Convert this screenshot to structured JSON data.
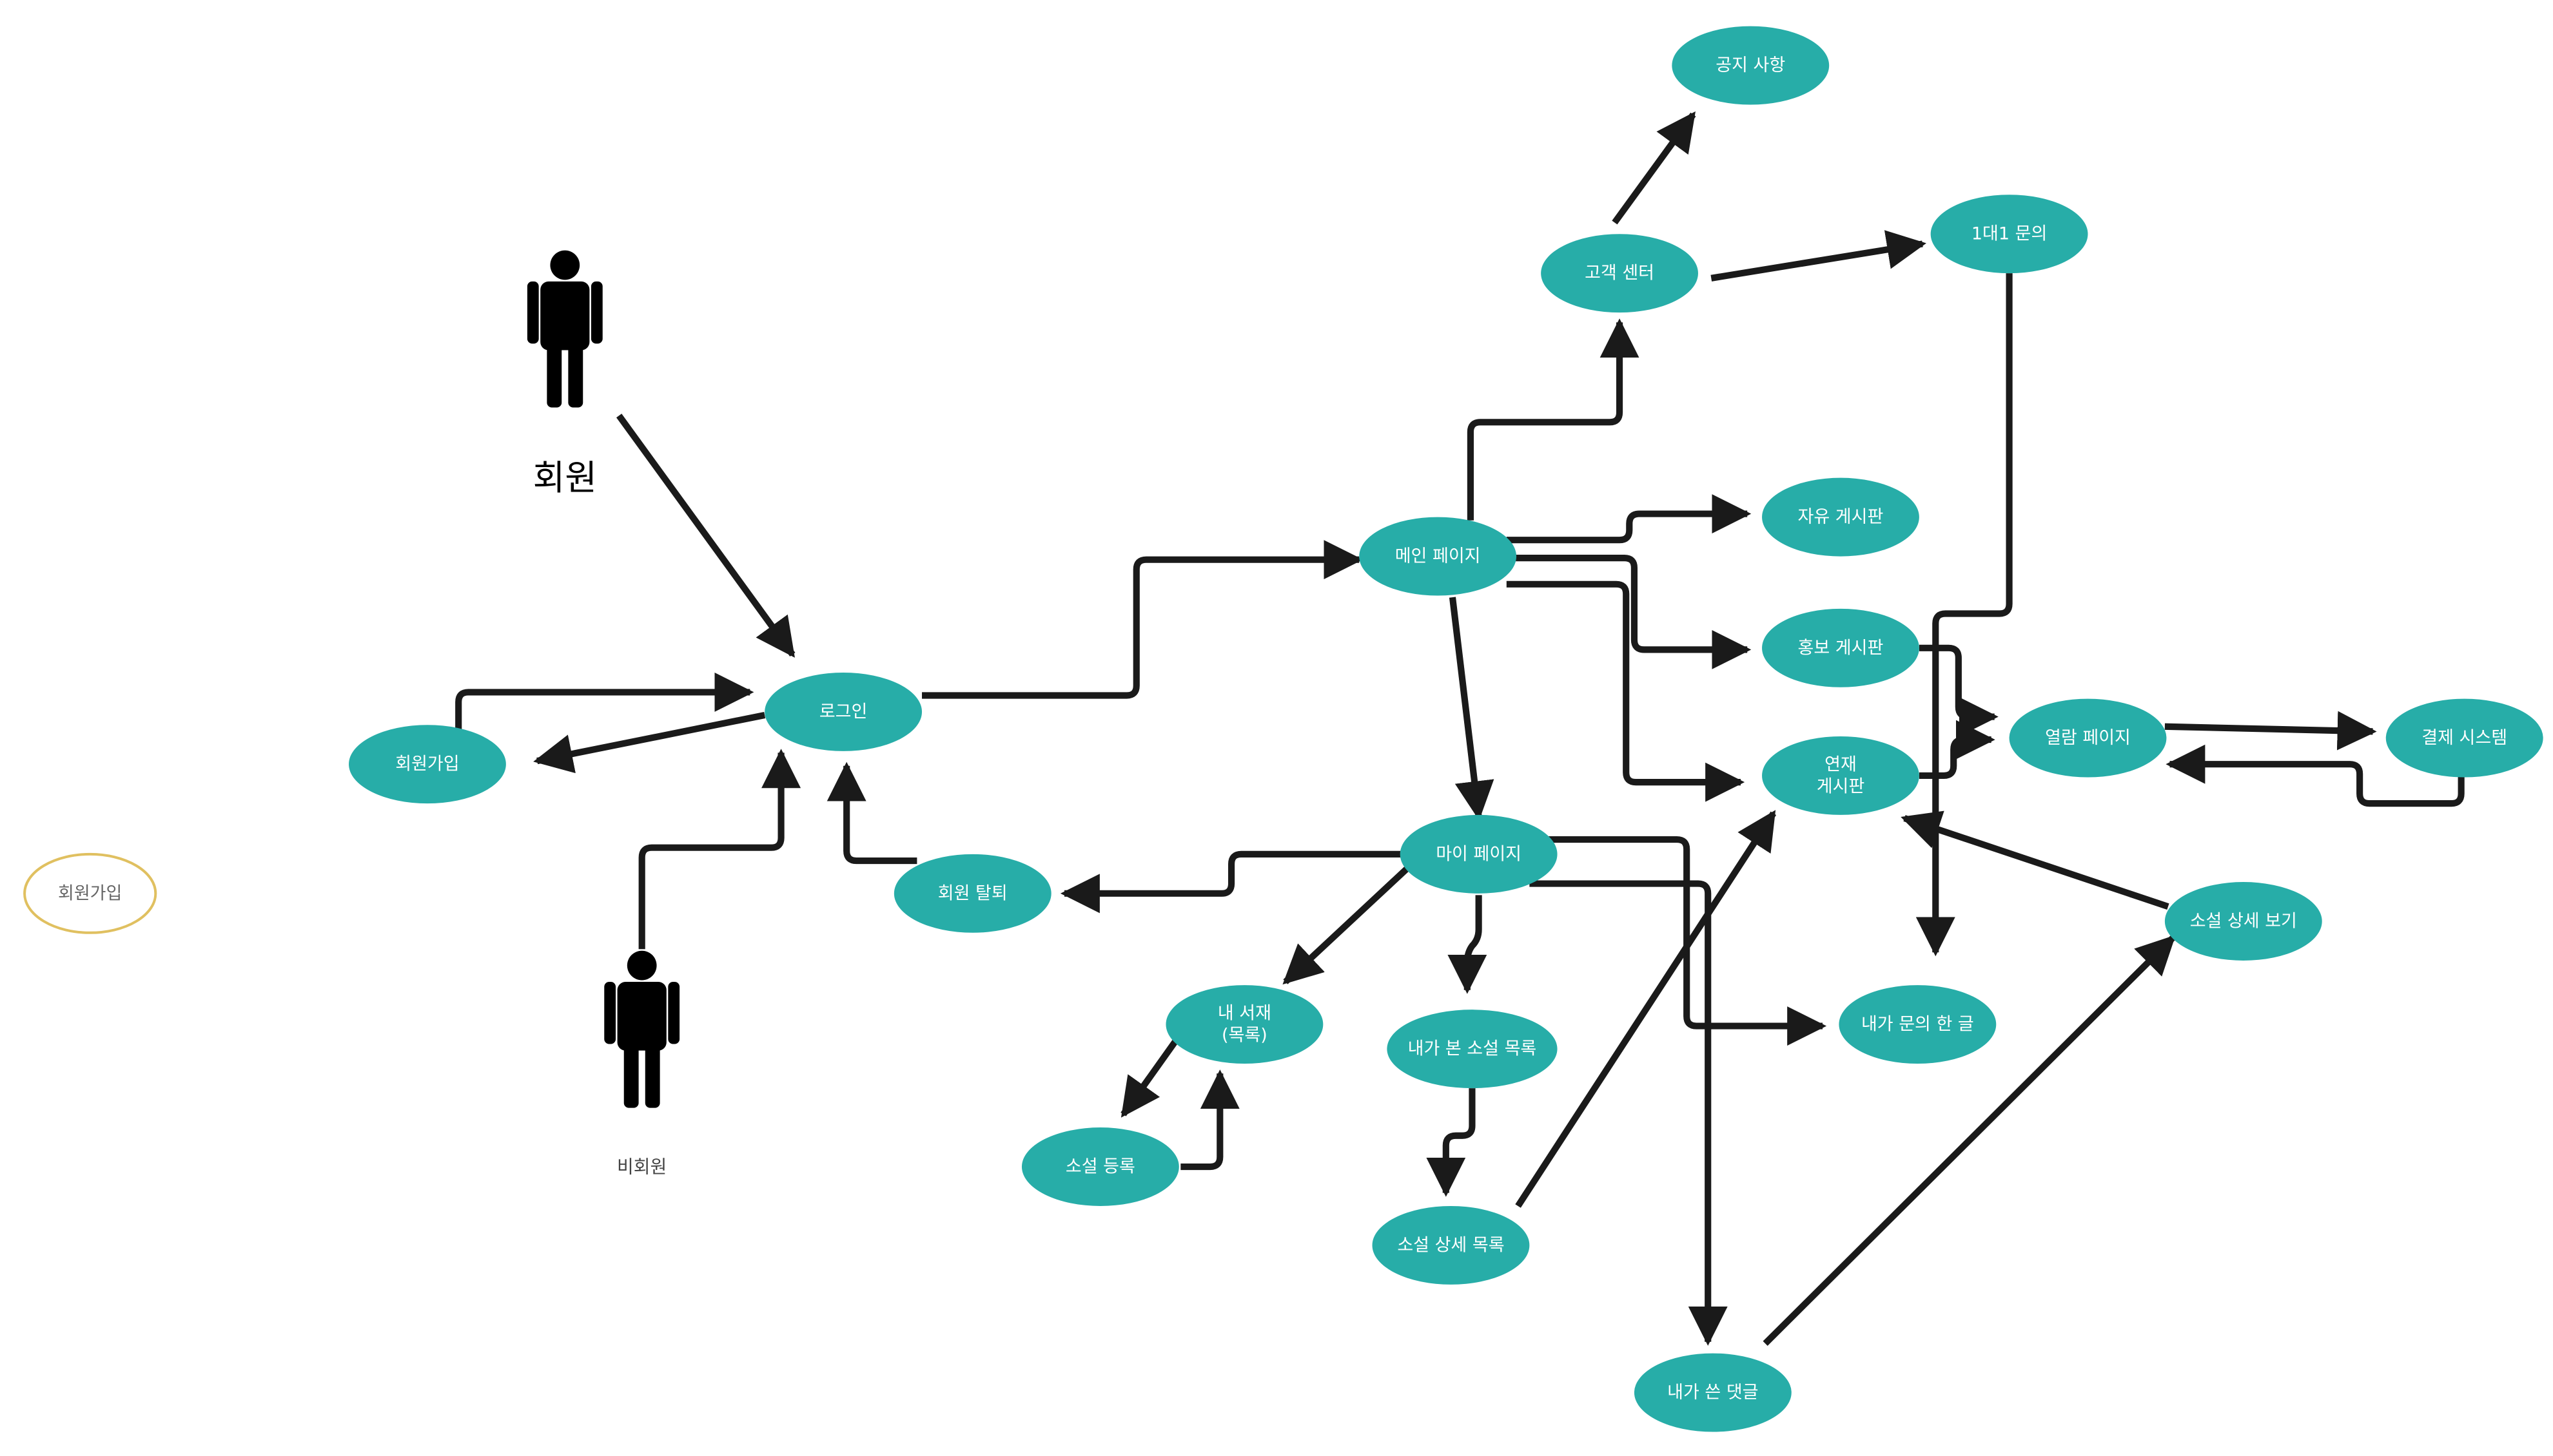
{
  "colors": {
    "node_fill": "#27ada8",
    "node_text": "#ffffff",
    "outline_stroke": "#e0c060",
    "outline_text": "#666666",
    "edge": "#1a1a1a",
    "actor": "#000000"
  },
  "actors": {
    "member": {
      "label": "회원",
      "icon": "person-icon"
    },
    "guest": {
      "label": "비회원",
      "icon": "person-icon"
    }
  },
  "nodes": {
    "login": [
      "로그인"
    ],
    "signup": [
      "회원가입"
    ],
    "withdraw": [
      "회원 탈퇴"
    ],
    "main": [
      "메인 페이지"
    ],
    "support": [
      "고객 센터"
    ],
    "notice": [
      "공지 사항"
    ],
    "inquiry": [
      "1대1 문의"
    ],
    "free_board": [
      "자유 게시판"
    ],
    "promo_board": [
      "홍보 게시판"
    ],
    "serial_board": [
      "연재",
      "게시판"
    ],
    "reading": [
      "열람 페이지"
    ],
    "payment": [
      "결제 시스템"
    ],
    "mypage": [
      "마이 페이지"
    ],
    "my_library": [
      "내 서재",
      "(목록)"
    ],
    "viewed_list": [
      "내가 본 소설 목록"
    ],
    "novel_register": [
      "소설 등록"
    ],
    "novel_detail_list": [
      "소설 상세 목록"
    ],
    "my_comments": [
      "내가 쓴 댓글"
    ],
    "my_inquiries": [
      "내가 문의 한 글"
    ],
    "novel_detail": [
      "소설 상세 보기"
    ],
    "signup_legend": [
      "회원가입"
    ]
  }
}
